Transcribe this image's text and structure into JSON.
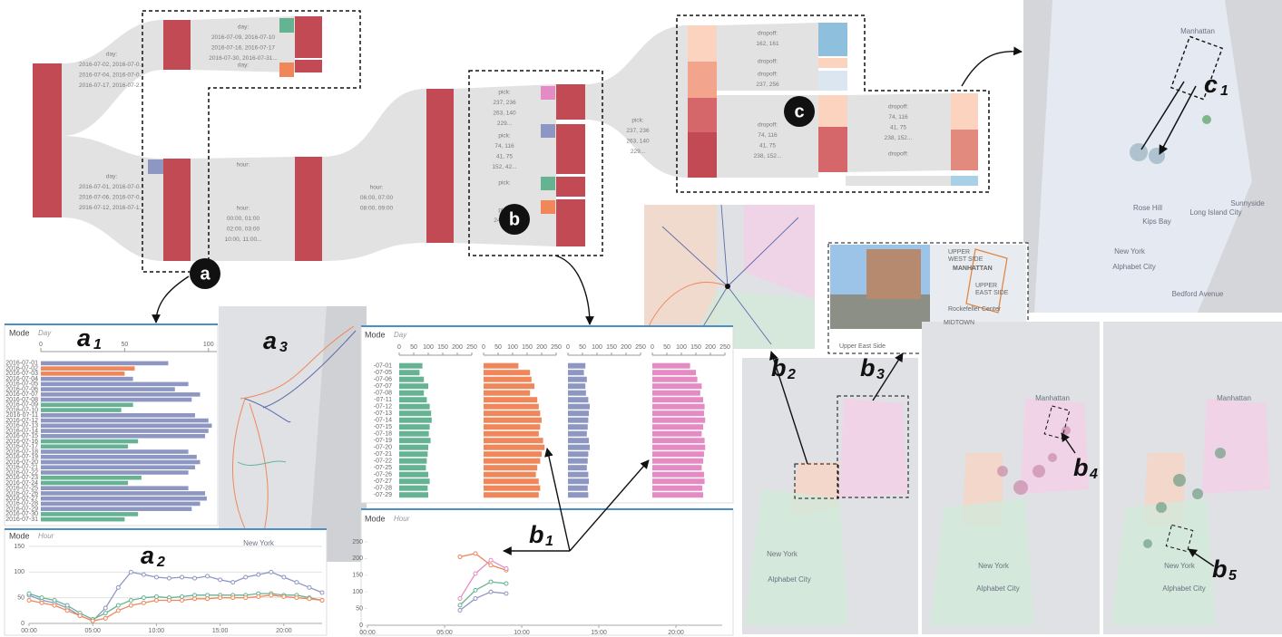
{
  "sankey": {
    "nodes": [
      {
        "lines": [
          "day:",
          "2016-07-02, 2016-07-0...",
          "2016-07-04, 2016-07-0...",
          "2016-07-17, 2016-07-2..."
        ]
      },
      {
        "lines": [
          "day:",
          "2016-07-01, 2016-07-0...",
          "2016-07-06, 2016-07-0...",
          "2016-07-12, 2016-07-1..."
        ]
      },
      {
        "lines": [
          "day:",
          "2016-07-09, 2016-07-10",
          "2016-07-16, 2016-07-17",
          "2016-07-30, 2016-07-31..."
        ]
      },
      {
        "lines": [
          "day:"
        ]
      },
      {
        "lines": [
          "hour:"
        ]
      },
      {
        "lines": [
          "hour:",
          "00:00, 01:00",
          "02:00, 03:00",
          "10:00, 11:00..."
        ]
      },
      {
        "lines": [
          "hour:",
          "06:00, 07:00",
          "08:00, 09:00"
        ]
      },
      {
        "lines": [
          "pick:",
          "237, 236",
          "263, 140",
          "229..."
        ]
      },
      {
        "lines": [
          "pick:",
          "74, 116",
          "41, 75",
          "152, 42..."
        ]
      },
      {
        "lines": [
          "pick:"
        ]
      },
      {
        "lines": [
          "pick:",
          "249, 1..."
        ]
      },
      {
        "lines": [
          "pick:",
          "237, 236",
          "263, 140",
          "229..."
        ]
      },
      {
        "lines": [
          "dropoff:",
          "162, 161"
        ]
      },
      {
        "lines": [
          "dropoff:"
        ]
      },
      {
        "lines": [
          "dropoff:",
          "237, 256"
        ]
      },
      {
        "lines": [
          "dropoff:",
          "74, 116",
          "41, 75",
          "238, 152..."
        ]
      },
      {
        "lines": [
          "dropoff:",
          "74, 116",
          "41, 75",
          "238, 152..."
        ]
      },
      {
        "lines": [
          "dropoff:"
        ]
      }
    ]
  },
  "markers": [
    "a",
    "b",
    "c"
  ],
  "panel_labels": [
    {
      "letter": "a",
      "sub": "1"
    },
    {
      "letter": "a",
      "sub": "2"
    },
    {
      "letter": "a",
      "sub": "3"
    },
    {
      "letter": "b",
      "sub": "1"
    },
    {
      "letter": "b",
      "sub": "2"
    },
    {
      "letter": "b",
      "sub": "3"
    },
    {
      "letter": "b",
      "sub": "4"
    },
    {
      "letter": "b",
      "sub": "5"
    },
    {
      "letter": "c",
      "sub": "1"
    }
  ],
  "a1": {
    "type": "bar",
    "title": "Mode",
    "subtitle": "Day",
    "categories": [
      "2016-07-01",
      "2016-07-02",
      "2016-07-03",
      "2016-07-04",
      "2016-07-05",
      "2016-07-06",
      "2016-07-07",
      "2016-07-08",
      "2016-07-09",
      "2016-07-10",
      "2016-07-11",
      "2016-07-12",
      "2016-07-13",
      "2016-07-14",
      "2016-07-15",
      "2016-07-16",
      "2016-07-17",
      "2016-07-18",
      "2016-07-19",
      "2016-07-20",
      "2016-07-21",
      "2016-07-22",
      "2016-07-23",
      "2016-07-24",
      "2016-07-25",
      "2016-07-26",
      "2016-07-27",
      "2016-07-28",
      "2016-07-29",
      "2016-07-30",
      "2016-07-31"
    ],
    "values": [
      76,
      56,
      50,
      55,
      88,
      80,
      95,
      90,
      55,
      48,
      92,
      100,
      102,
      100,
      98,
      58,
      52,
      88,
      93,
      95,
      92,
      88,
      60,
      52,
      88,
      98,
      99,
      95,
      90,
      58,
      50
    ],
    "colors": [
      "#8e96c2",
      "#f0875a",
      "#f0875a",
      "#8e96c2",
      "#8e96c2",
      "#8e96c2",
      "#8e96c2",
      "#8e96c2",
      "#66b394",
      "#66b394",
      "#8e96c2",
      "#8e96c2",
      "#8e96c2",
      "#8e96c2",
      "#8e96c2",
      "#66b394",
      "#66b394",
      "#8e96c2",
      "#8e96c2",
      "#8e96c2",
      "#8e96c2",
      "#8e96c2",
      "#66b394",
      "#66b394",
      "#8e96c2",
      "#8e96c2",
      "#8e96c2",
      "#8e96c2",
      "#8e96c2",
      "#66b394",
      "#66b394"
    ],
    "xlim": [
      0,
      105
    ],
    "xticks": [
      0,
      50,
      100
    ]
  },
  "a2": {
    "type": "line",
    "title": "Mode",
    "subtitle": "Hour",
    "grid": true,
    "x": [
      0,
      1,
      2,
      3,
      4,
      5,
      6,
      7,
      8,
      9,
      10,
      11,
      12,
      13,
      14,
      15,
      16,
      17,
      18,
      19,
      20,
      21,
      22,
      23
    ],
    "series": [
      {
        "color": "#8e96c2",
        "values": [
          55,
          45,
          40,
          30,
          15,
          5,
          30,
          70,
          100,
          95,
          90,
          88,
          90,
          88,
          92,
          85,
          80,
          90,
          95,
          100,
          90,
          80,
          70,
          60
        ]
      },
      {
        "color": "#66b394",
        "values": [
          58,
          50,
          45,
          35,
          20,
          8,
          20,
          35,
          45,
          50,
          52,
          50,
          52,
          55,
          55,
          55,
          55,
          55,
          58,
          58,
          55,
          55,
          50,
          45
        ]
      },
      {
        "color": "#f0875a",
        "values": [
          45,
          40,
          35,
          25,
          15,
          5,
          10,
          25,
          35,
          40,
          45,
          45,
          45,
          48,
          48,
          50,
          50,
          50,
          52,
          55,
          52,
          50,
          48,
          45
        ]
      }
    ],
    "xlim": [
      0,
      23
    ],
    "ylim": [
      0,
      150
    ],
    "yticks": [
      0,
      50,
      100,
      150
    ],
    "xticks": [
      {
        "value": 0,
        "label": "00:00"
      },
      {
        "value": 5,
        "label": "05:00"
      },
      {
        "value": 10,
        "label": "10:00"
      },
      {
        "value": 15,
        "label": "15:00"
      },
      {
        "value": 20,
        "label": "20:00"
      }
    ]
  },
  "b_bars": {
    "type": "bar",
    "title": "Mode",
    "subtitle": "Day",
    "categories": [
      "-07-01",
      "-07-05",
      "-07-06",
      "-07-07",
      "-07-08",
      "-07-11",
      "-07-12",
      "-07-13",
      "-07-14",
      "-07-15",
      "-07-18",
      "-07-19",
      "-07-20",
      "-07-21",
      "-07-22",
      "-07-25",
      "-07-26",
      "-07-27",
      "-07-28",
      "-07-29"
    ],
    "series": [
      {
        "color": "#66b394",
        "values": [
          80,
          70,
          85,
          100,
          85,
          95,
          105,
          110,
          112,
          105,
          102,
          108,
          100,
          98,
          95,
          92,
          100,
          105,
          98,
          100
        ]
      },
      {
        "color": "#f0875a",
        "values": [
          120,
          160,
          165,
          175,
          160,
          185,
          190,
          195,
          200,
          195,
          190,
          205,
          210,
          200,
          195,
          185,
          180,
          190,
          195,
          190
        ]
      },
      {
        "color": "#8e96c2",
        "values": [
          60,
          55,
          65,
          60,
          62,
          70,
          75,
          72,
          70,
          68,
          65,
          72,
          75,
          70,
          68,
          65,
          70,
          72,
          68,
          70
        ]
      },
      {
        "color": "#e58bc4",
        "values": [
          130,
          150,
          155,
          170,
          165,
          175,
          180,
          178,
          182,
          175,
          170,
          180,
          182,
          178,
          175,
          170,
          178,
          180,
          172,
          175
        ]
      }
    ],
    "xlim": [
      0,
      250
    ],
    "xticks": [
      0,
      50,
      100,
      150,
      200,
      250
    ]
  },
  "b_lines": {
    "type": "line",
    "title": "Mode",
    "subtitle": "Hour",
    "grid": false,
    "x": [
      6,
      7,
      8,
      9
    ],
    "series": [
      {
        "color": "#f0875a",
        "values": [
          205,
          215,
          180,
          165
        ]
      },
      {
        "color": "#e58bc4",
        "values": [
          80,
          155,
          195,
          170
        ]
      },
      {
        "color": "#66b394",
        "values": [
          60,
          105,
          130,
          125
        ]
      },
      {
        "color": "#8e96c2",
        "values": [
          45,
          80,
          100,
          95
        ]
      }
    ],
    "xlim": [
      0,
      23
    ],
    "ylim": [
      0,
      250
    ],
    "yticks": [
      0,
      50,
      100,
      150,
      200,
      250
    ],
    "xticks": [
      {
        "value": 0,
        "label": "00:00"
      },
      {
        "value": 5,
        "label": "05:00"
      },
      {
        "value": 10,
        "label": "10:00"
      },
      {
        "value": 15,
        "label": "15:00"
      },
      {
        "value": 20,
        "label": "20:00"
      }
    ]
  },
  "place_card": {
    "title": "Upper East Side",
    "map_labels": [
      "UPPER",
      "WEST SIDE",
      "MANHATTAN",
      "UPPER",
      "EAST SIDE",
      "Rockefeller Center",
      "MIDTOWN"
    ]
  },
  "maps": {
    "c1": [
      "Manhattan",
      "Rose Hill",
      "Kips Bay",
      "Long Island City",
      "Sunnyside",
      "New York",
      "Alphabet City",
      "Bedford Avenue"
    ],
    "a3": [
      "New York"
    ],
    "b2": [
      "New York",
      "Alphabet City"
    ],
    "b4": [
      "Manhattan",
      "New York",
      "Alphabet City"
    ],
    "b5": [
      "Manhattan",
      "New York",
      "Alphabet City"
    ]
  }
}
